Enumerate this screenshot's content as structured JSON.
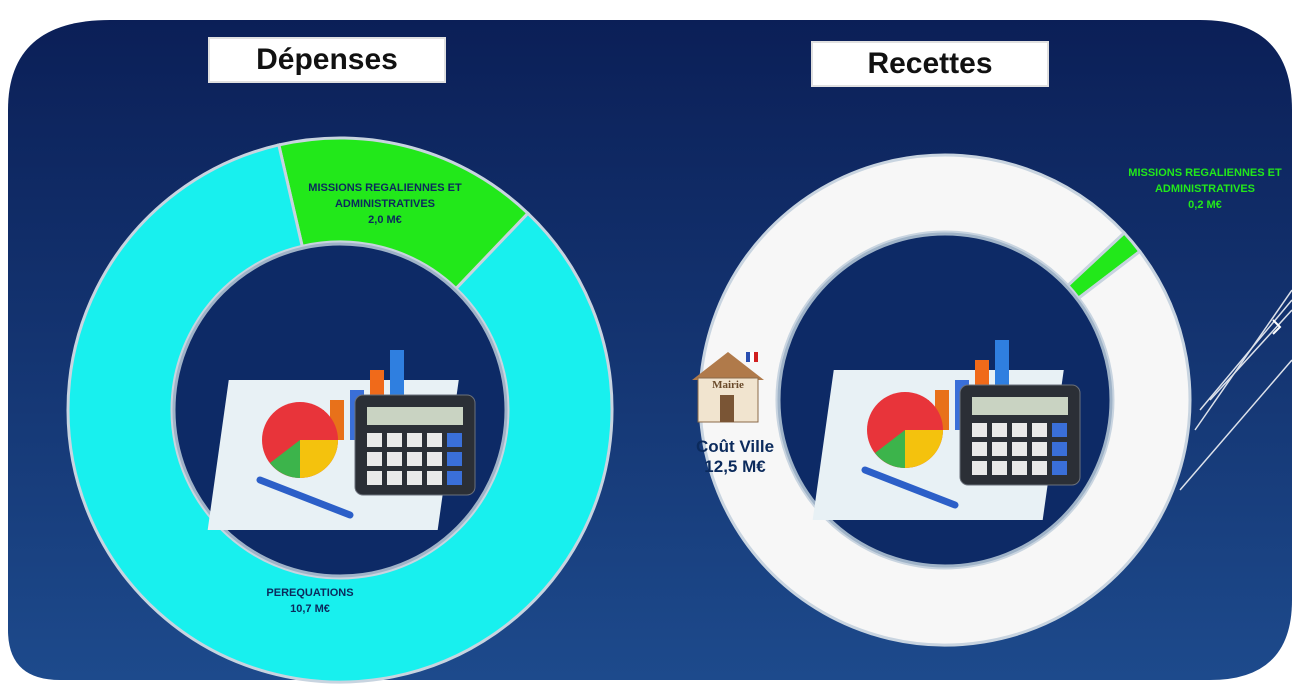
{
  "chart_data": [
    {
      "type": "pie",
      "title": "Dépenses",
      "categories": [
        "MISSIONS REGALIENNES ET ADMINISTRATIVES",
        "PEREQUATIONS"
      ],
      "values": [
        2.0,
        10.7
      ],
      "value_labels": [
        "2,0 M€",
        "10,7 M€"
      ],
      "colors": [
        "#22e81a",
        "#18f0ee"
      ]
    },
    {
      "type": "pie",
      "title": "Recettes",
      "categories": [
        "MISSIONS REGALIENNES ET ADMINISTRATIVES",
        "Coût Ville"
      ],
      "values": [
        0.2,
        12.5
      ],
      "value_labels": [
        "0,2 M€",
        "12,5 M€"
      ],
      "colors": [
        "#22e81a",
        "#f7f7f7"
      ],
      "annotations": [
        "Mairie"
      ]
    }
  ]
}
